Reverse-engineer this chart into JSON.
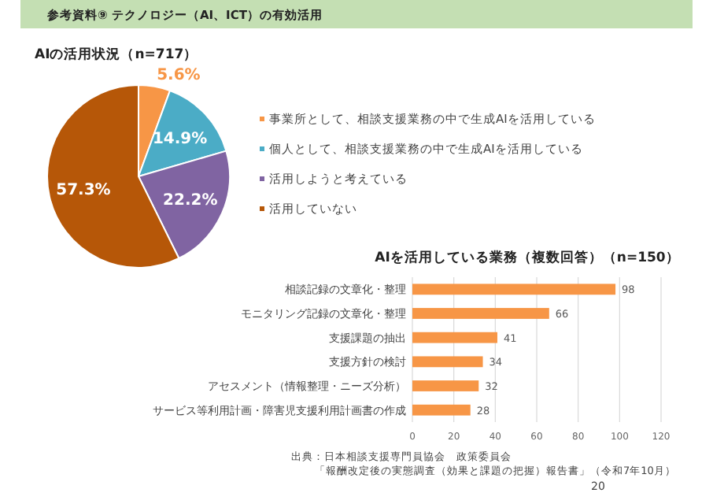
{
  "chart_data": [
    {
      "type": "pie",
      "title": "AIの活用状況（n=717）",
      "annotations": [
        "参考資料⑨ テクノロジー（AI、ICT）の有効活用"
      ],
      "categories": [
        "事業所として、相談支援業務の中で生成AIを活用している",
        "個人として、相談支援業務の中で生成AIを活用している",
        "活用しようと考えている",
        "活用していない"
      ],
      "values": [
        5.6,
        14.9,
        22.2,
        57.3
      ],
      "value_labels": [
        "5.6%",
        "14.9%",
        "22.2%",
        "57.3%"
      ],
      "colors": [
        "#f79646",
        "#4bacc6",
        "#8064a2",
        "#b65708"
      ],
      "legend": "right"
    },
    {
      "type": "bar",
      "orientation": "horizontal",
      "title": "AIを活用している業務（複数回答）（n=150）",
      "categories": [
        "相談記録の文章化・整理",
        "モニタリング記録の文章化・整理",
        "支援課題の抽出",
        "支援方針の検討",
        "アセスメント（情報整理・ニーズ分析）",
        "サービス等利用計画・障害児支援利用計画書の作成"
      ],
      "values": [
        98,
        66,
        41,
        34,
        32,
        28
      ],
      "color": "#f79646",
      "xlim": [
        0,
        120
      ],
      "xticks": [
        0,
        20,
        40,
        60,
        80,
        100,
        120
      ],
      "grid": "x",
      "data_labels": true,
      "annotations": [
        "出典：日本相談支援専門員協会　政策委員会",
        "「報酬改定後の実態調査（効果と課題の把握）報告書」（令和7年10月）",
        "20"
      ]
    }
  ]
}
